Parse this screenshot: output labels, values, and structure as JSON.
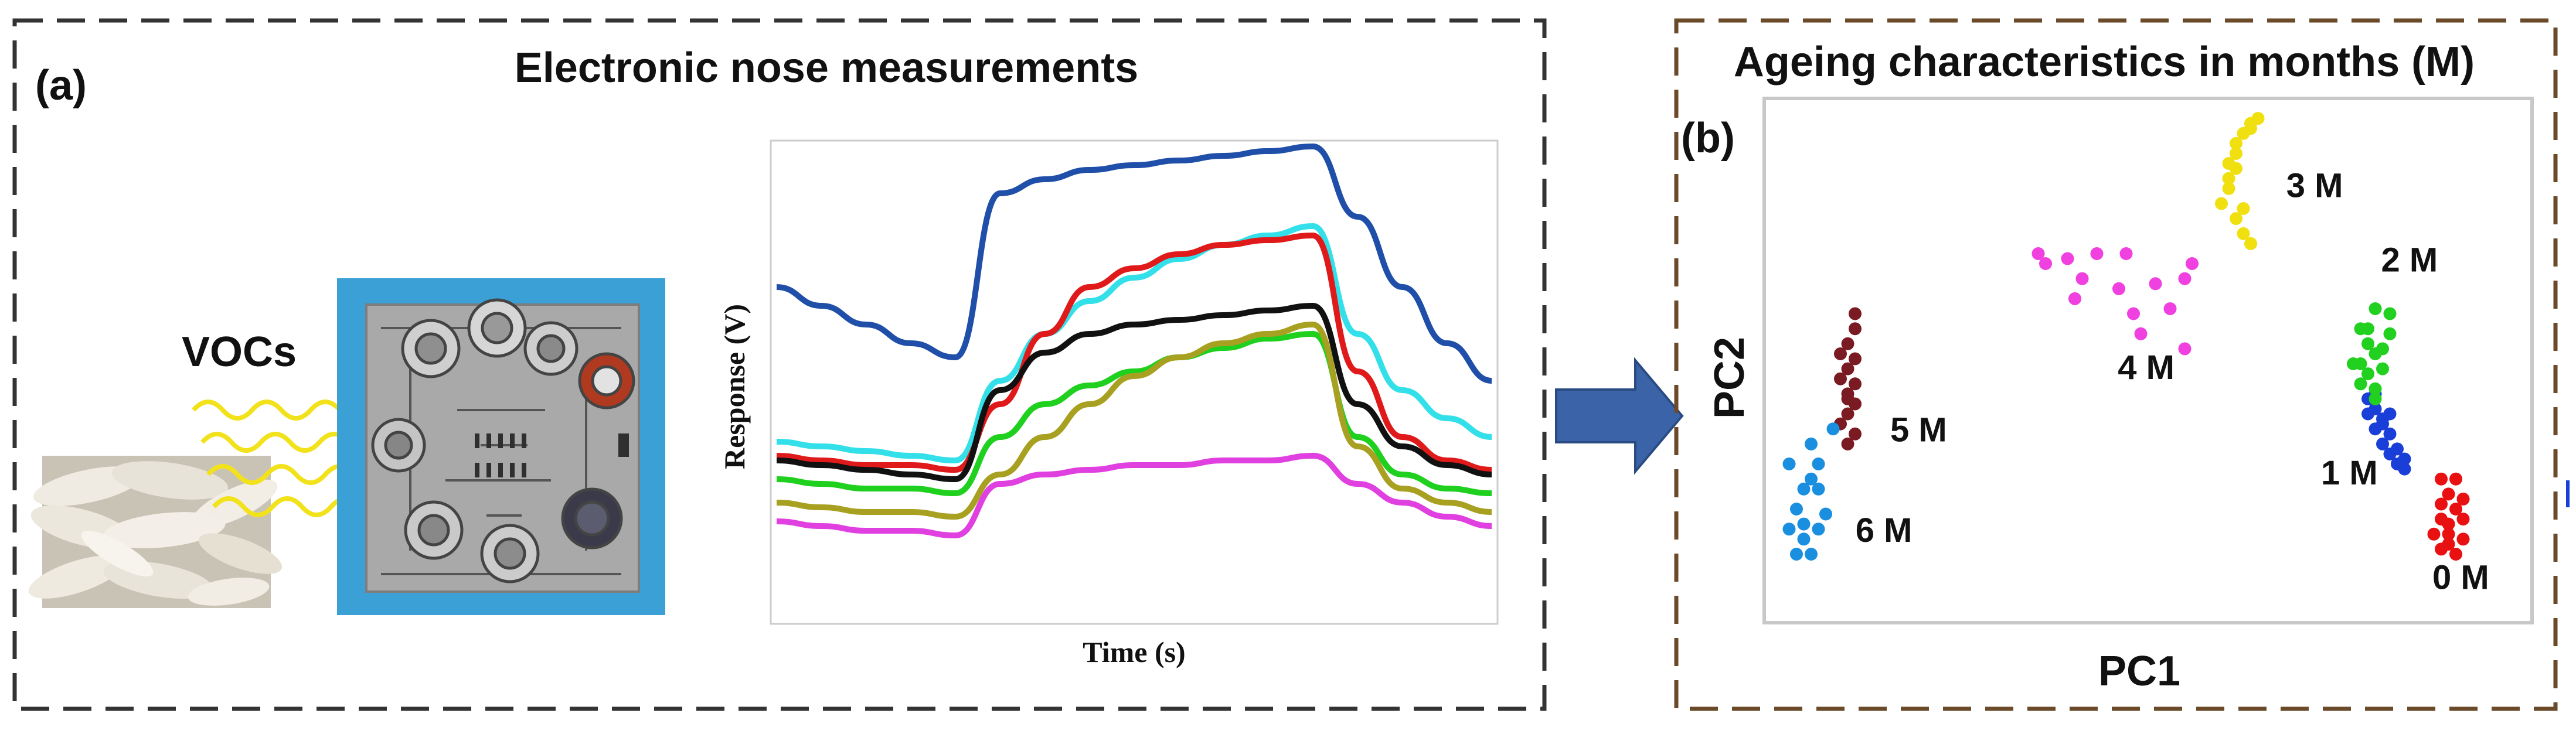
{
  "panel_a": {
    "tag": "(a)",
    "title": "Electronic nose measurements",
    "vocs_label": "VOCs",
    "chart": {
      "ylabel": "Response (V)",
      "xlabel": "Time (s)"
    }
  },
  "panel_b": {
    "tag": "(b)",
    "title": "Ageing characteristics in months (M)",
    "xlabel": "PC1",
    "ylabel": "PC2"
  },
  "colors": {
    "frame": "#333333",
    "frame_b": "#6b4a2a",
    "arrow": "#3b64a8",
    "pcb_bg": "#3aa0d6"
  },
  "chart_data": [
    {
      "type": "line",
      "ylabel": "Response (V)",
      "xlabel": "Time (s)",
      "grid": false,
      "x": [
        0,
        1,
        2,
        3,
        4,
        5,
        6,
        7,
        8,
        9,
        10,
        11,
        12,
        13,
        14,
        15,
        16
      ],
      "series": [
        {
          "color": "#1f4fa8",
          "values": [
            0.7,
            0.66,
            0.62,
            0.58,
            0.55,
            0.9,
            0.93,
            0.95,
            0.96,
            0.97,
            0.98,
            0.99,
            1.0,
            0.85,
            0.7,
            0.58,
            0.5
          ]
        },
        {
          "color": "#33e0ea",
          "values": [
            0.37,
            0.36,
            0.35,
            0.34,
            0.33,
            0.5,
            0.6,
            0.67,
            0.72,
            0.76,
            0.79,
            0.81,
            0.83,
            0.6,
            0.48,
            0.42,
            0.38
          ]
        },
        {
          "color": "#e01a1a",
          "values": [
            0.34,
            0.33,
            0.32,
            0.32,
            0.31,
            0.45,
            0.6,
            0.7,
            0.74,
            0.77,
            0.79,
            0.8,
            0.81,
            0.52,
            0.38,
            0.33,
            0.31
          ]
        },
        {
          "color": "#111111",
          "values": [
            0.33,
            0.32,
            0.31,
            0.3,
            0.29,
            0.48,
            0.56,
            0.6,
            0.62,
            0.63,
            0.64,
            0.65,
            0.66,
            0.45,
            0.36,
            0.32,
            0.3
          ]
        },
        {
          "color": "#1fd01f",
          "values": [
            0.29,
            0.28,
            0.27,
            0.27,
            0.26,
            0.38,
            0.45,
            0.49,
            0.52,
            0.55,
            0.57,
            0.59,
            0.6,
            0.38,
            0.3,
            0.27,
            0.26
          ]
        },
        {
          "color": "#a8a020",
          "values": [
            0.24,
            0.23,
            0.22,
            0.22,
            0.21,
            0.3,
            0.38,
            0.45,
            0.51,
            0.55,
            0.58,
            0.6,
            0.62,
            0.36,
            0.27,
            0.24,
            0.22
          ]
        },
        {
          "color": "#e040e0",
          "values": [
            0.2,
            0.19,
            0.18,
            0.18,
            0.17,
            0.28,
            0.3,
            0.31,
            0.32,
            0.32,
            0.33,
            0.33,
            0.34,
            0.28,
            0.24,
            0.21,
            0.19
          ]
        }
      ]
    },
    {
      "type": "scatter",
      "xlabel": "PC1",
      "ylabel": "PC2",
      "grid": false,
      "xlim": [
        0,
        10
      ],
      "ylim": [
        0,
        10
      ],
      "series": [
        {
          "name": "0 M",
          "color": "#e81010",
          "points": [
            [
              9.0,
              2.6
            ],
            [
              9.1,
              2.3
            ],
            [
              9.2,
              2.0
            ],
            [
              9.0,
              1.8
            ],
            [
              9.1,
              1.5
            ],
            [
              9.3,
              1.4
            ],
            [
              9.0,
              1.2
            ],
            [
              9.2,
              1.1
            ],
            [
              9.1,
              1.7
            ],
            [
              9.3,
              2.2
            ],
            [
              9.2,
              2.6
            ],
            [
              9.0,
              2.1
            ],
            [
              9.1,
              1.3
            ],
            [
              9.3,
              1.8
            ],
            [
              8.9,
              1.5
            ]
          ]
        },
        {
          "name": "1 M",
          "color": "#1a3fd8",
          "points": [
            [
              8.0,
              4.2
            ],
            [
              8.1,
              4.0
            ],
            [
              8.2,
              3.8
            ],
            [
              8.1,
              3.6
            ],
            [
              8.3,
              3.5
            ],
            [
              8.2,
              3.3
            ],
            [
              8.3,
              3.1
            ],
            [
              8.4,
              2.9
            ],
            [
              8.5,
              2.8
            ],
            [
              8.1,
              4.3
            ],
            [
              8.3,
              3.9
            ],
            [
              8.2,
              3.7
            ],
            [
              8.4,
              3.2
            ],
            [
              8.0,
              3.9
            ],
            [
              8.5,
              3.0
            ]
          ]
        },
        {
          "name": "2 M",
          "color": "#22d020",
          "points": [
            [
              8.1,
              6.0
            ],
            [
              8.3,
              5.9
            ],
            [
              7.9,
              5.6
            ],
            [
              8.0,
              5.3
            ],
            [
              8.1,
              5.1
            ],
            [
              7.9,
              4.9
            ],
            [
              8.0,
              4.7
            ],
            [
              7.9,
              4.5
            ],
            [
              8.1,
              4.4
            ],
            [
              8.2,
              4.8
            ],
            [
              8.0,
              5.6
            ],
            [
              8.3,
              5.5
            ],
            [
              7.8,
              4.9
            ],
            [
              8.1,
              4.2
            ],
            [
              8.2,
              5.2
            ]
          ]
        },
        {
          "name": "3 M",
          "color": "#f0e010",
          "points": [
            [
              6.5,
              9.8
            ],
            [
              6.4,
              9.7
            ],
            [
              6.3,
              9.5
            ],
            [
              6.2,
              9.3
            ],
            [
              6.2,
              9.1
            ],
            [
              6.1,
              8.9
            ],
            [
              6.1,
              8.6
            ],
            [
              6.1,
              8.4
            ],
            [
              6.0,
              8.1
            ],
            [
              6.2,
              7.8
            ],
            [
              6.3,
              7.5
            ],
            [
              6.4,
              7.3
            ],
            [
              6.3,
              8.0
            ],
            [
              6.4,
              9.6
            ],
            [
              6.2,
              8.8
            ]
          ]
        },
        {
          "name": "4 M",
          "color": "#f040e0",
          "points": [
            [
              3.5,
              7.1
            ],
            [
              3.9,
              7.0
            ],
            [
              4.3,
              7.1
            ],
            [
              4.7,
              7.1
            ],
            [
              4.1,
              6.6
            ],
            [
              4.6,
              6.4
            ],
            [
              5.1,
              6.5
            ],
            [
              5.5,
              6.6
            ],
            [
              4.0,
              6.2
            ],
            [
              4.8,
              5.9
            ],
            [
              5.3,
              6.0
            ],
            [
              5.5,
              5.2
            ],
            [
              4.9,
              5.5
            ],
            [
              5.6,
              6.9
            ],
            [
              3.6,
              6.9
            ]
          ]
        },
        {
          "name": "5 M",
          "color": "#7a1a22",
          "points": [
            [
              1.0,
              5.9
            ],
            [
              1.0,
              5.6
            ],
            [
              0.9,
              5.3
            ],
            [
              1.0,
              5.0
            ],
            [
              0.9,
              4.8
            ],
            [
              0.8,
              4.6
            ],
            [
              0.9,
              4.3
            ],
            [
              1.0,
              4.1
            ],
            [
              0.9,
              3.9
            ],
            [
              0.8,
              3.7
            ],
            [
              1.0,
              3.5
            ],
            [
              0.9,
              3.3
            ],
            [
              0.8,
              5.1
            ],
            [
              1.0,
              4.5
            ],
            [
              0.9,
              4.2
            ]
          ]
        },
        {
          "name": "6 M",
          "color": "#1a8fe0",
          "points": [
            [
              0.7,
              3.6
            ],
            [
              0.4,
              3.3
            ],
            [
              0.1,
              2.9
            ],
            [
              0.4,
              2.6
            ],
            [
              0.5,
              2.4
            ],
            [
              0.3,
              2.4
            ],
            [
              0.2,
              2.0
            ],
            [
              0.6,
              1.9
            ],
            [
              0.1,
              1.6
            ],
            [
              0.3,
              1.4
            ],
            [
              0.5,
              1.6
            ],
            [
              0.2,
              1.1
            ],
            [
              0.4,
              1.1
            ],
            [
              0.5,
              2.9
            ],
            [
              0.3,
              1.7
            ]
          ]
        }
      ]
    }
  ]
}
